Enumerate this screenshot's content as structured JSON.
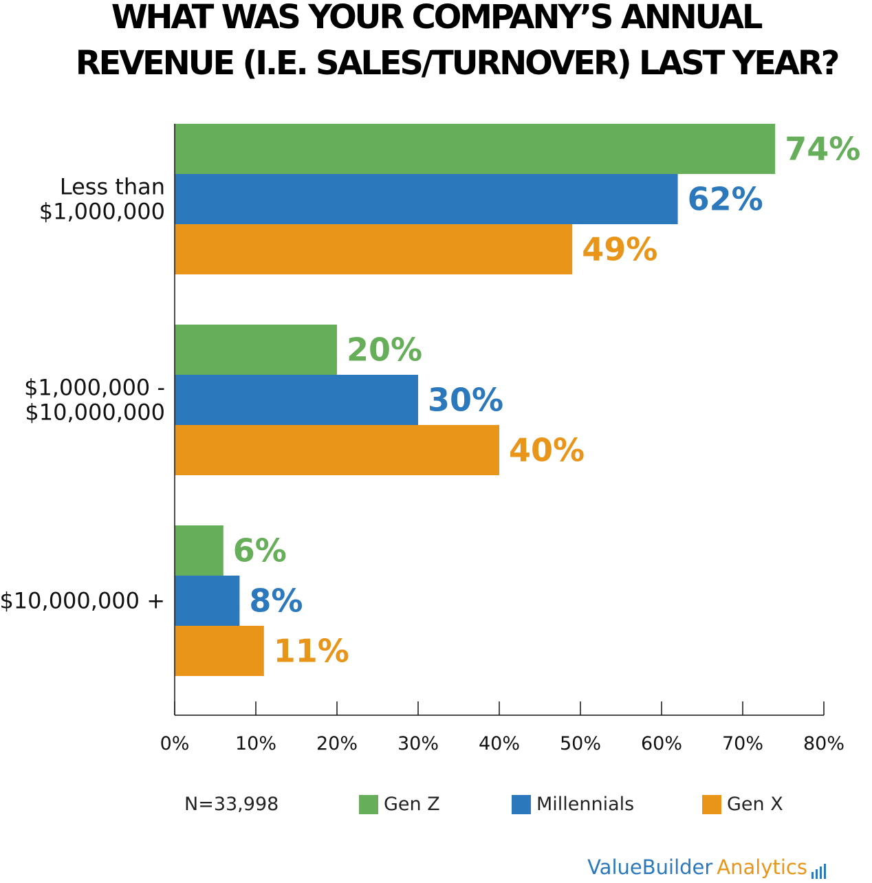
{
  "title_line1": "WHAT WAS YOUR COMPANY’S ANNUAL",
  "title_line2": "REVENUE (I.E. SALES/TURNOVER) LAST YEAR?",
  "sample_note": "N=33,998",
  "brand": {
    "part1": "ValueBuilder",
    "part2": "Analytics"
  },
  "colors": {
    "gen_z": "#67ae5a",
    "millennials": "#2b78bd",
    "gen_x": "#e8951a"
  },
  "chart_data": {
    "type": "bar",
    "orientation": "horizontal",
    "title": "WHAT WAS YOUR COMPANY’S ANNUAL REVENUE (I.E. SALES/TURNOVER) LAST YEAR?",
    "categories": [
      [
        "Less than",
        "$1,000,000"
      ],
      [
        "$1,000,000 -",
        "$10,000,000"
      ],
      [
        "$10,000,000 +"
      ]
    ],
    "series": [
      {
        "name": "Gen Z",
        "color": "#67ae5a",
        "values": [
          74,
          20,
          6
        ]
      },
      {
        "name": "Millennials",
        "color": "#2b78bd",
        "values": [
          62,
          30,
          8
        ]
      },
      {
        "name": "Gen X",
        "color": "#e8951a",
        "values": [
          49,
          40,
          11
        ]
      }
    ],
    "xlim": [
      0,
      80
    ],
    "x_ticks": [
      0,
      10,
      20,
      30,
      40,
      50,
      60,
      70,
      80
    ],
    "x_tick_labels": [
      "0%",
      "10%",
      "20%",
      "30%",
      "40%",
      "50%",
      "60%",
      "70%",
      "80%"
    ],
    "value_suffix": "%",
    "grid": false,
    "legend_position": "bottom"
  }
}
